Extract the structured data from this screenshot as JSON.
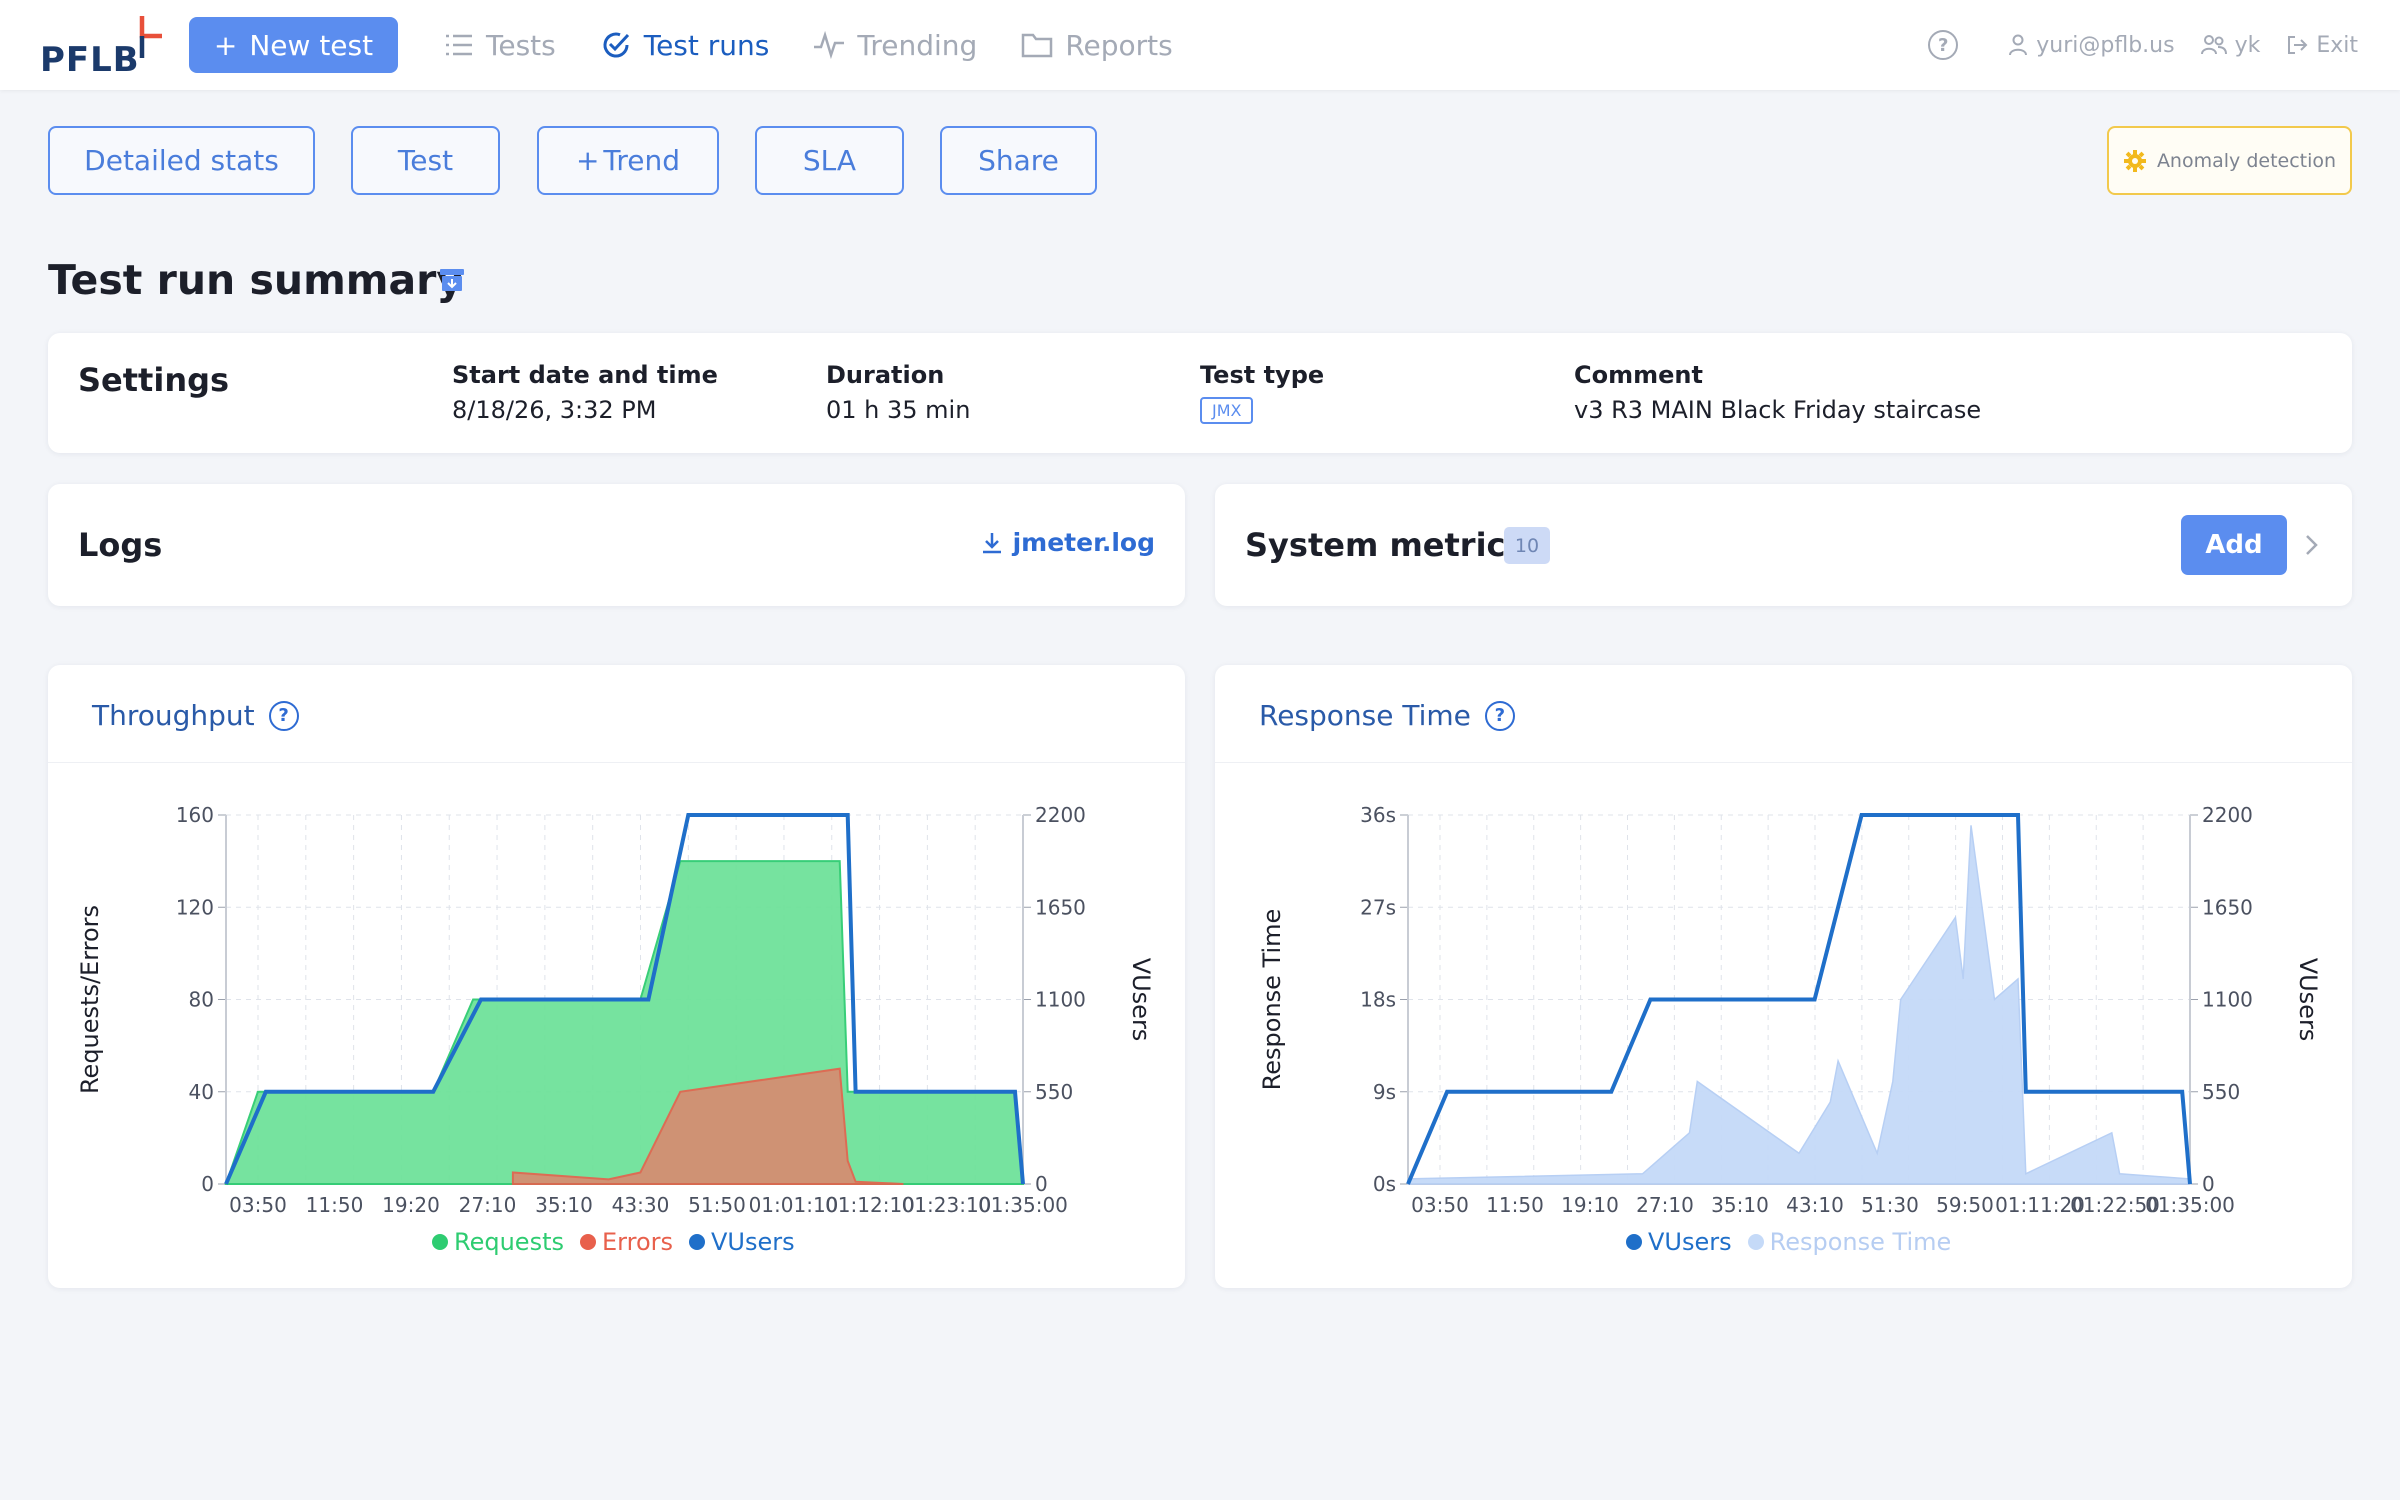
{
  "app": {
    "logo_text": "PFLB"
  },
  "nav": {
    "new_test": "New test",
    "items": [
      {
        "label": "Tests",
        "icon": "list-icon"
      },
      {
        "label": "Test runs",
        "icon": "check-circle-icon",
        "active": true
      },
      {
        "label": "Trending",
        "icon": "pulse-icon"
      },
      {
        "label": "Reports",
        "icon": "folder-icon"
      }
    ]
  },
  "user": {
    "email": "yuri@pflb.us",
    "team": "yk",
    "exit": "Exit"
  },
  "toolbar": {
    "detailed_stats": "Detailed stats",
    "test": "Test",
    "trend": "Trend",
    "sla": "SLA",
    "share": "Share",
    "anomaly": "Anomaly detection"
  },
  "page": {
    "title": "Test run summary"
  },
  "settings": {
    "title": "Settings",
    "start_label": "Start date and time",
    "start_value": "8/18/26, 3:32 PM",
    "duration_label": "Duration",
    "duration_value": "01 h 35 min",
    "type_label": "Test type",
    "type_value": "JMX",
    "comment_label": "Comment",
    "comment_value": "v3 R3 MAIN Black Friday staircase"
  },
  "logs": {
    "title": "Logs",
    "file": "jmeter.log"
  },
  "system_metrics": {
    "title": "System metrics",
    "count": "10",
    "add": "Add"
  },
  "colors": {
    "accent": "#5b8def",
    "requests": "#2ecc71",
    "errors": "#e8604c",
    "vusers": "#1f6fc9",
    "response": "#c5daf8"
  },
  "chart_data": [
    {
      "type": "area",
      "title": "Throughput",
      "ylabel": "Requests/Errors",
      "y2label": "VUsers",
      "ylim": [
        0,
        160
      ],
      "y2lim": [
        0,
        2200
      ],
      "yticks": [
        "0",
        "40",
        "80",
        "120",
        "160"
      ],
      "y2ticks": [
        "0",
        "550",
        "1100",
        "1650",
        "2200"
      ],
      "xticks": [
        "03:50",
        "11:50",
        "19:20",
        "27:10",
        "35:10",
        "43:30",
        "51:50",
        "01:01:10",
        "01:12:10",
        "01:23:10",
        "01:35:00"
      ],
      "grid": true,
      "legend_position": "bottom",
      "series": [
        {
          "name": "Requests",
          "color": "#2ecc71",
          "x": [
            0,
            0.04,
            0.26,
            0.31,
            0.52,
            0.57,
            0.77,
            0.78,
            0.79,
            0.99,
            1.0
          ],
          "values": [
            0,
            40,
            40,
            80,
            80,
            140,
            140,
            40,
            40,
            40,
            0
          ]
        },
        {
          "name": "Errors",
          "color": "#e8604c",
          "x": [
            0.36,
            0.48,
            0.52,
            0.57,
            0.77,
            0.78,
            0.79,
            0.85
          ],
          "values": [
            5,
            2,
            5,
            40,
            50,
            10,
            1,
            0
          ]
        },
        {
          "name": "VUsers",
          "color": "#1f6fc9",
          "axis": "right",
          "x": [
            0,
            0.05,
            0.26,
            0.32,
            0.53,
            0.58,
            0.78,
            0.79,
            0.99,
            1.0
          ],
          "values": [
            0,
            550,
            550,
            1100,
            1100,
            2200,
            2200,
            550,
            550,
            0
          ]
        }
      ]
    },
    {
      "type": "area",
      "title": "Response Time",
      "ylabel": "Response Time",
      "y2label": "VUsers",
      "ylim": [
        0,
        36
      ],
      "y2lim": [
        0,
        2200
      ],
      "yticks": [
        "0s",
        "9s",
        "18s",
        "27s",
        "36s"
      ],
      "y2ticks": [
        "0",
        "550",
        "1100",
        "1650",
        "2200"
      ],
      "xticks": [
        "03:50",
        "11:50",
        "19:10",
        "27:10",
        "35:10",
        "43:10",
        "51:30",
        "59:50",
        "01:11:20",
        "01:22:50",
        "01:35:00"
      ],
      "grid": true,
      "legend_position": "bottom",
      "series": [
        {
          "name": "VUsers",
          "color": "#1f6fc9",
          "axis": "right",
          "x": [
            0,
            0.05,
            0.26,
            0.31,
            0.52,
            0.58,
            0.78,
            0.79,
            0.99,
            1.0
          ],
          "values": [
            0,
            550,
            550,
            1100,
            1100,
            2200,
            2200,
            550,
            550,
            0
          ]
        },
        {
          "name": "Response Time",
          "color": "#c5daf8",
          "x": [
            0,
            0.3,
            0.36,
            0.37,
            0.5,
            0.54,
            0.55,
            0.6,
            0.62,
            0.63,
            0.7,
            0.71,
            0.72,
            0.75,
            0.78,
            0.79,
            0.9,
            0.91,
            1.0
          ],
          "values": [
            0.5,
            1,
            5,
            10,
            3,
            8,
            12,
            3,
            10,
            18,
            26,
            20,
            35,
            18,
            20,
            1,
            5,
            1,
            0.5
          ]
        }
      ]
    }
  ]
}
